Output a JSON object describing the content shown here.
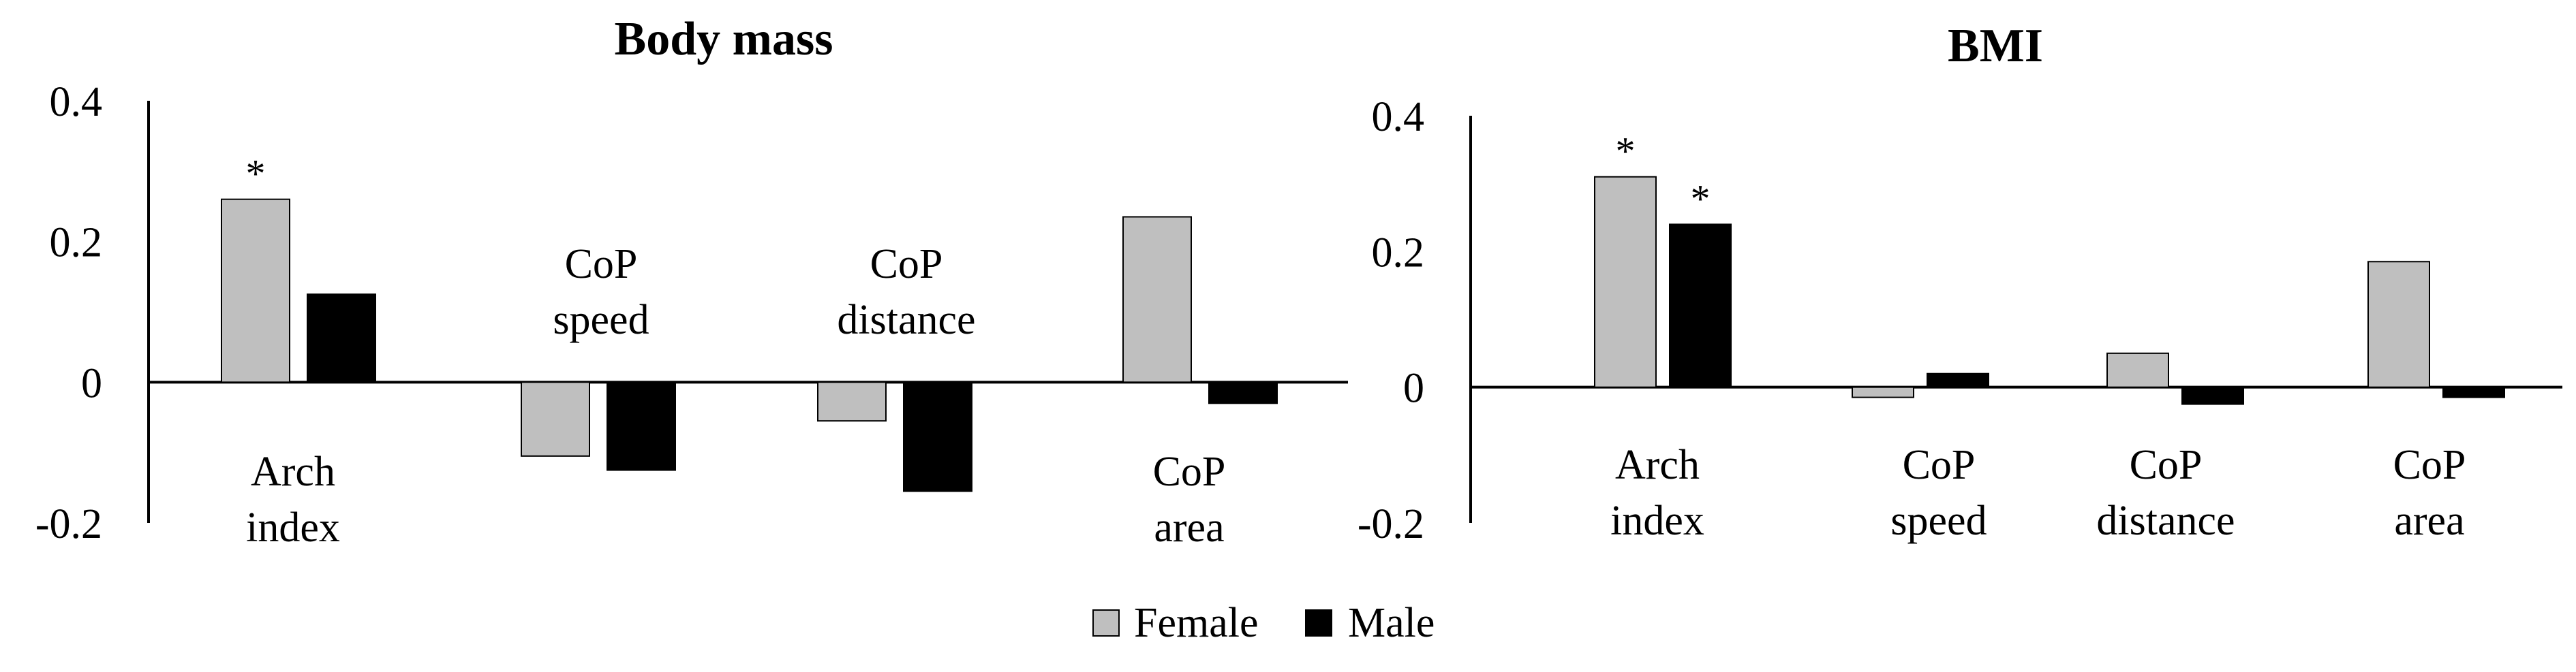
{
  "colors": {
    "female": "#bfbfbf",
    "male": "#000000",
    "axis": "#000000"
  },
  "legend": {
    "items": [
      {
        "label": "Female",
        "color_key": "female"
      },
      {
        "label": "Male",
        "color_key": "male"
      }
    ],
    "placement": "bottom-center"
  },
  "chart_data": [
    {
      "type": "bar",
      "title": "Body mass",
      "categories": [
        {
          "lines": [
            "Arch",
            "index"
          ],
          "label_side": "below"
        },
        {
          "lines": [
            "CoP",
            "speed"
          ],
          "label_side": "above"
        },
        {
          "lines": [
            "CoP",
            "distance"
          ],
          "label_side": "above"
        },
        {
          "lines": [
            "CoP",
            "area"
          ],
          "label_side": "below"
        }
      ],
      "series": [
        {
          "name": "Female",
          "values": [
            0.26,
            -0.105,
            -0.055,
            0.235
          ],
          "significant": [
            true,
            false,
            false,
            false
          ]
        },
        {
          "name": "Male",
          "values": [
            0.125,
            -0.125,
            -0.155,
            -0.03
          ],
          "significant": [
            false,
            false,
            false,
            false
          ]
        }
      ],
      "ylim": [
        -0.2,
        0.4
      ],
      "yticks": [
        0.4,
        0.2,
        0,
        -0.2
      ],
      "ytick_labels": [
        "0.4",
        "0.2",
        "0",
        "-0.2"
      ],
      "significance_marker": "*",
      "xlabel": "",
      "ylabel": "",
      "grid": false
    },
    {
      "type": "bar",
      "title": "BMI",
      "categories": [
        {
          "lines": [
            "Arch",
            "index"
          ],
          "label_side": "below"
        },
        {
          "lines": [
            "CoP",
            "speed"
          ],
          "label_side": "below"
        },
        {
          "lines": [
            "CoP",
            "distance"
          ],
          "label_side": "below"
        },
        {
          "lines": [
            "CoP",
            "area"
          ],
          "label_side": "below"
        }
      ],
      "series": [
        {
          "name": "Female",
          "values": [
            0.31,
            -0.015,
            0.05,
            0.185
          ],
          "significant": [
            true,
            false,
            false,
            false
          ]
        },
        {
          "name": "Male",
          "values": [
            0.24,
            0.02,
            -0.025,
            -0.015
          ],
          "significant": [
            true,
            false,
            false,
            false
          ]
        }
      ],
      "ylim": [
        -0.2,
        0.4
      ],
      "yticks": [
        0.4,
        0.2,
        0,
        -0.2
      ],
      "ytick_labels": [
        "0.4",
        "0.2",
        "0",
        "-0.2"
      ],
      "significance_marker": "*",
      "xlabel": "",
      "ylabel": "",
      "grid": false
    }
  ]
}
